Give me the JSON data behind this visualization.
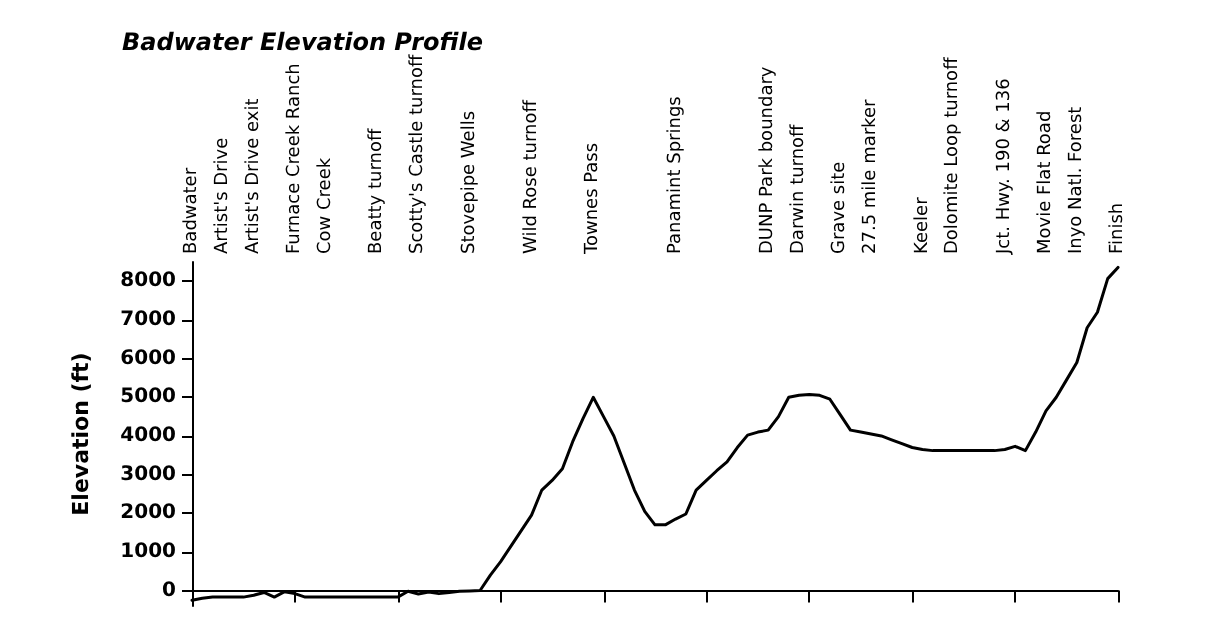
{
  "chart_data": {
    "type": "line",
    "title": "Badwater Elevation Profile",
    "ylabel": "Elevation (ft)",
    "categories": [
      "Badwater",
      null,
      null,
      "Artist's Drive",
      null,
      null,
      "Artist's Drive exit",
      null,
      null,
      null,
      "Furnace Creek Ranch",
      null,
      null,
      "Cow Creek",
      null,
      null,
      null,
      null,
      "Beatty turnoff",
      null,
      null,
      null,
      "Scotty's Castle turnoff",
      null,
      null,
      null,
      null,
      "Stovepipe Wells",
      null,
      null,
      null,
      null,
      null,
      "Wild Rose turnoff",
      null,
      null,
      null,
      null,
      null,
      "Townes Pass",
      null,
      null,
      null,
      null,
      null,
      null,
      null,
      "Panamint Springs",
      null,
      null,
      null,
      null,
      null,
      null,
      null,
      null,
      "DUNP Park boundary",
      null,
      null,
      "Darwin turnoff",
      null,
      null,
      null,
      "Grave site",
      null,
      null,
      "27.5 mile marker",
      null,
      null,
      null,
      null,
      "Keeler",
      null,
      null,
      "Dolomite Loop turnoff",
      null,
      null,
      null,
      null,
      "Jct. Hwy. 190 & 136",
      null,
      null,
      null,
      "Movie Flat Road",
      null,
      null,
      "Inyo Natl. Forest",
      null,
      null,
      null,
      "Finish"
    ],
    "series": [
      {
        "color": "#000000",
        "values": [
          -250,
          -200,
          -170,
          -170,
          -170,
          -170,
          -120,
          -50,
          -170,
          -30,
          -80,
          -170,
          -170,
          -170,
          -170,
          -170,
          -170,
          -170,
          -170,
          -170,
          -170,
          -20,
          -90,
          -40,
          -80,
          -50,
          -20,
          -10,
          0,
          400,
          750,
          1150,
          1550,
          1950,
          2600,
          2850,
          3150,
          3850,
          4450,
          5000,
          4500,
          4000,
          3300,
          2600,
          2050,
          1700,
          1700,
          1850,
          1980,
          2600,
          2850,
          3100,
          3330,
          3700,
          4020,
          4100,
          4150,
          4500,
          5000,
          5050,
          5070,
          5050,
          4950,
          4550,
          4150,
          4100,
          4050,
          4000,
          3900,
          3800,
          3700,
          3650,
          3620,
          3620,
          3620,
          3620,
          3620,
          3620,
          3620,
          3650,
          3730,
          3620,
          4100,
          4650,
          5000,
          5450,
          5900,
          6800,
          7200,
          8070,
          8360
        ]
      }
    ],
    "ylim": [
      -400,
      8500
    ],
    "yticks": [
      0,
      1000,
      2000,
      3000,
      4000,
      5000,
      6000,
      7000,
      8000
    ],
    "line_style": "solid"
  }
}
